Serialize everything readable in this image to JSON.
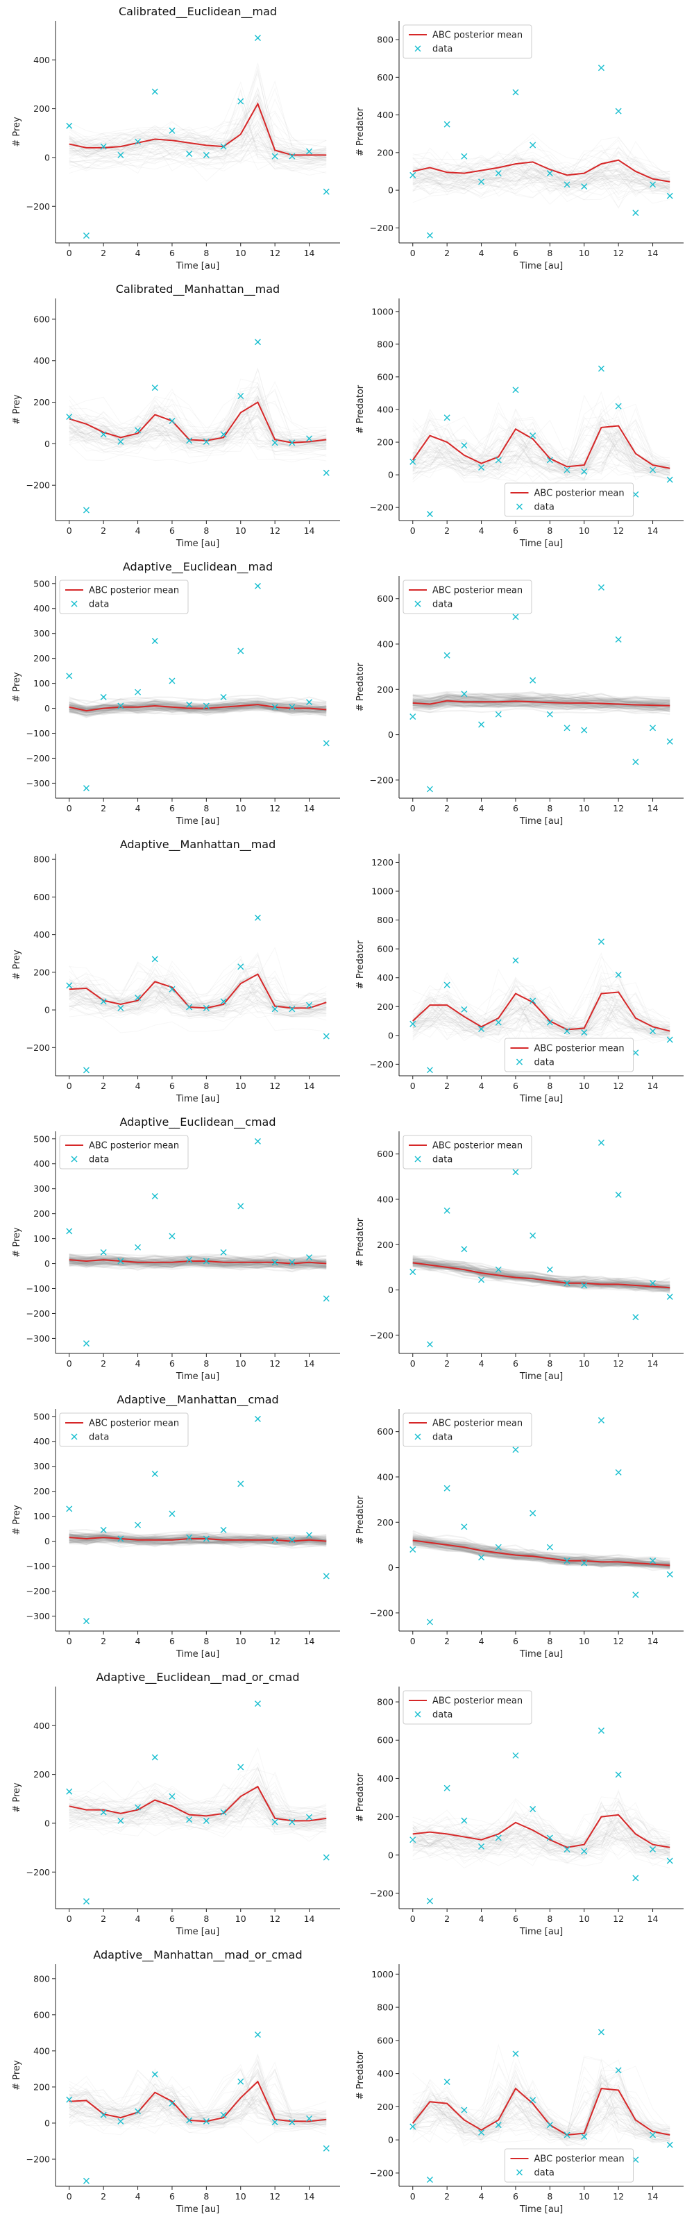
{
  "colors": {
    "mean": "#d62728",
    "data": "#17becf",
    "traj": "#aaaaaa",
    "band": "#888888"
  },
  "chart_data": [
    {
      "row": 0,
      "col": 0,
      "type": "line",
      "title": "Calibrated__Euclidean__mad",
      "xlabel": "Time [au]",
      "ylabel": "# Prey",
      "xlim": [
        -0.8,
        15.8
      ],
      "ylim": [
        -350,
        560
      ],
      "yticks": [
        -200,
        0,
        200,
        400
      ],
      "xticks": [
        0,
        2,
        4,
        6,
        8,
        10,
        12,
        14
      ],
      "spread": "wide",
      "legend": null,
      "data": [
        130,
        -320,
        45,
        10,
        65,
        270,
        110,
        15,
        10,
        45,
        230,
        490,
        5,
        5,
        25,
        -140
      ],
      "mean": [
        55,
        40,
        40,
        45,
        60,
        75,
        70,
        60,
        50,
        45,
        95,
        220,
        30,
        10,
        10,
        10
      ]
    },
    {
      "row": 0,
      "col": 1,
      "type": "line",
      "title": "",
      "xlabel": "Time [au]",
      "ylabel": "# Predator",
      "xlim": [
        -0.8,
        15.8
      ],
      "ylim": [
        -280,
        900
      ],
      "yticks": [
        -200,
        0,
        200,
        400,
        600,
        800
      ],
      "xticks": [
        0,
        2,
        4,
        6,
        8,
        10,
        12,
        14
      ],
      "spread": "wide",
      "legend": "upper left",
      "data": [
        80,
        -240,
        350,
        180,
        45,
        90,
        520,
        240,
        90,
        30,
        20,
        650,
        420,
        -120,
        30,
        -30
      ],
      "mean": [
        100,
        120,
        95,
        90,
        105,
        120,
        140,
        150,
        110,
        80,
        90,
        140,
        160,
        100,
        60,
        45
      ]
    },
    {
      "row": 1,
      "col": 0,
      "type": "line",
      "title": "Calibrated__Manhattan__mad",
      "xlabel": "Time [au]",
      "ylabel": "# Prey",
      "xlim": [
        -0.8,
        15.8
      ],
      "ylim": [
        -370,
        700
      ],
      "yticks": [
        -200,
        0,
        200,
        400,
        600
      ],
      "xticks": [
        0,
        2,
        4,
        6,
        8,
        10,
        12,
        14
      ],
      "spread": "wide",
      "legend": null,
      "data": [
        130,
        -320,
        45,
        10,
        65,
        270,
        110,
        15,
        10,
        45,
        230,
        490,
        5,
        5,
        25,
        -140
      ],
      "mean": [
        120,
        95,
        55,
        30,
        50,
        140,
        110,
        20,
        15,
        30,
        150,
        200,
        20,
        5,
        10,
        20
      ]
    },
    {
      "row": 1,
      "col": 1,
      "type": "line",
      "title": "",
      "xlabel": "Time [au]",
      "ylabel": "# Predator",
      "xlim": [
        -0.8,
        15.8
      ],
      "ylim": [
        -280,
        1080
      ],
      "yticks": [
        -200,
        0,
        200,
        400,
        600,
        800,
        1000
      ],
      "xticks": [
        0,
        2,
        4,
        6,
        8,
        10,
        12,
        14
      ],
      "spread": "wide",
      "legend": "lower center",
      "data": [
        80,
        -240,
        350,
        180,
        45,
        90,
        520,
        240,
        90,
        30,
        20,
        650,
        420,
        -120,
        30,
        -30
      ],
      "mean": [
        90,
        240,
        200,
        120,
        70,
        110,
        280,
        220,
        100,
        50,
        60,
        290,
        300,
        130,
        60,
        40
      ]
    },
    {
      "row": 2,
      "col": 0,
      "type": "line",
      "title": "Adaptive__Euclidean__mad",
      "xlabel": "Time [au]",
      "ylabel": "# Prey",
      "xlim": [
        -0.8,
        15.8
      ],
      "ylim": [
        -360,
        530
      ],
      "yticks": [
        -300,
        -200,
        -100,
        0,
        100,
        200,
        300,
        400,
        500
      ],
      "xticks": [
        0,
        2,
        4,
        6,
        8,
        10,
        12,
        14
      ],
      "spread": "narrow",
      "legend": "upper left",
      "data": [
        130,
        -320,
        45,
        10,
        65,
        270,
        110,
        15,
        10,
        45,
        230,
        490,
        5,
        5,
        25,
        -140
      ],
      "mean": [
        5,
        -10,
        0,
        5,
        5,
        10,
        5,
        0,
        0,
        5,
        10,
        15,
        5,
        0,
        0,
        -5
      ]
    },
    {
      "row": 2,
      "col": 1,
      "type": "line",
      "title": "",
      "xlabel": "Time [au]",
      "ylabel": "# Predator",
      "xlim": [
        -0.8,
        15.8
      ],
      "ylim": [
        -280,
        700
      ],
      "yticks": [
        -200,
        0,
        200,
        400,
        600
      ],
      "xticks": [
        0,
        2,
        4,
        6,
        8,
        10,
        12,
        14
      ],
      "spread": "narrow",
      "legend": "upper left",
      "data": [
        80,
        -240,
        350,
        180,
        45,
        90,
        520,
        240,
        90,
        30,
        20,
        650,
        420,
        -120,
        30,
        -30
      ],
      "mean": [
        140,
        135,
        150,
        145,
        145,
        145,
        148,
        145,
        142,
        140,
        140,
        138,
        135,
        132,
        130,
        128
      ]
    },
    {
      "row": 3,
      "col": 0,
      "type": "line",
      "title": "Adaptive__Manhattan__mad",
      "xlabel": "Time [au]",
      "ylabel": "# Prey",
      "xlim": [
        -0.8,
        15.8
      ],
      "ylim": [
        -350,
        830
      ],
      "yticks": [
        -200,
        0,
        200,
        400,
        600,
        800
      ],
      "xticks": [
        0,
        2,
        4,
        6,
        8,
        10,
        12,
        14
      ],
      "spread": "wide",
      "legend": null,
      "data": [
        130,
        -320,
        45,
        10,
        65,
        270,
        110,
        15,
        10,
        45,
        230,
        490,
        5,
        5,
        25,
        -140
      ],
      "mean": [
        110,
        115,
        50,
        30,
        50,
        150,
        120,
        15,
        10,
        30,
        140,
        190,
        20,
        10,
        10,
        40
      ]
    },
    {
      "row": 3,
      "col": 1,
      "type": "line",
      "title": "",
      "xlabel": "Time [au]",
      "ylabel": "# Predator",
      "xlim": [
        -0.8,
        15.8
      ],
      "ylim": [
        -280,
        1260
      ],
      "yticks": [
        -200,
        0,
        200,
        400,
        600,
        800,
        1000,
        1200
      ],
      "xticks": [
        0,
        2,
        4,
        6,
        8,
        10,
        12,
        14
      ],
      "spread": "wide",
      "legend": "lower center",
      "data": [
        80,
        -240,
        350,
        180,
        45,
        90,
        520,
        240,
        90,
        30,
        20,
        650,
        420,
        -120,
        30,
        -30
      ],
      "mean": [
        100,
        210,
        210,
        130,
        60,
        120,
        290,
        230,
        100,
        40,
        50,
        290,
        300,
        120,
        60,
        30
      ]
    },
    {
      "row": 4,
      "col": 0,
      "type": "line",
      "title": "Adaptive__Euclidean__cmad",
      "xlabel": "Time [au]",
      "ylabel": "# Prey",
      "xlim": [
        -0.8,
        15.8
      ],
      "ylim": [
        -360,
        530
      ],
      "yticks": [
        -300,
        -200,
        -100,
        0,
        100,
        200,
        300,
        400,
        500
      ],
      "xticks": [
        0,
        2,
        4,
        6,
        8,
        10,
        12,
        14
      ],
      "spread": "narrow",
      "legend": "upper left",
      "data": [
        130,
        -320,
        45,
        10,
        65,
        270,
        110,
        15,
        10,
        45,
        230,
        490,
        5,
        5,
        25,
        -140
      ],
      "mean": [
        15,
        10,
        15,
        10,
        5,
        5,
        5,
        10,
        10,
        5,
        5,
        5,
        5,
        0,
        5,
        0
      ]
    },
    {
      "row": 4,
      "col": 1,
      "type": "line",
      "title": "",
      "xlabel": "Time [au]",
      "ylabel": "# Predator",
      "xlim": [
        -0.8,
        15.8
      ],
      "ylim": [
        -280,
        700
      ],
      "yticks": [
        -200,
        0,
        200,
        400,
        600
      ],
      "xticks": [
        0,
        2,
        4,
        6,
        8,
        10,
        12,
        14
      ],
      "spread": "narrow",
      "legend": "upper left",
      "data": [
        80,
        -240,
        350,
        180,
        45,
        90,
        520,
        240,
        90,
        30,
        20,
        650,
        420,
        -120,
        30,
        -30
      ],
      "mean": [
        120,
        110,
        100,
        90,
        75,
        65,
        55,
        50,
        40,
        30,
        30,
        25,
        25,
        20,
        15,
        10
      ]
    },
    {
      "row": 5,
      "col": 0,
      "type": "line",
      "title": "Adaptive__Manhattan__cmad",
      "xlabel": "Time [au]",
      "ylabel": "# Prey",
      "xlim": [
        -0.8,
        15.8
      ],
      "ylim": [
        -360,
        530
      ],
      "yticks": [
        -300,
        -200,
        -100,
        0,
        100,
        200,
        300,
        400,
        500
      ],
      "xticks": [
        0,
        2,
        4,
        6,
        8,
        10,
        12,
        14
      ],
      "spread": "narrow",
      "legend": "upper left",
      "data": [
        130,
        -320,
        45,
        10,
        65,
        270,
        110,
        15,
        10,
        45,
        230,
        490,
        5,
        5,
        25,
        -140
      ],
      "mean": [
        15,
        10,
        15,
        10,
        5,
        5,
        5,
        10,
        10,
        5,
        5,
        5,
        5,
        0,
        5,
        0
      ]
    },
    {
      "row": 5,
      "col": 1,
      "type": "line",
      "title": "",
      "xlabel": "Time [au]",
      "ylabel": "# Predator",
      "xlim": [
        -0.8,
        15.8
      ],
      "ylim": [
        -280,
        700
      ],
      "yticks": [
        -200,
        0,
        200,
        400,
        600
      ],
      "xticks": [
        0,
        2,
        4,
        6,
        8,
        10,
        12,
        14
      ],
      "spread": "narrow",
      "legend": "upper left",
      "data": [
        80,
        -240,
        350,
        180,
        45,
        90,
        520,
        240,
        90,
        30,
        20,
        650,
        420,
        -120,
        30,
        -30
      ],
      "mean": [
        120,
        110,
        100,
        90,
        75,
        65,
        55,
        50,
        40,
        30,
        30,
        25,
        25,
        20,
        15,
        10
      ]
    },
    {
      "row": 6,
      "col": 0,
      "type": "line",
      "title": "Adaptive__Euclidean__mad_or_cmad",
      "xlabel": "Time [au]",
      "ylabel": "# Prey",
      "xlim": [
        -0.8,
        15.8
      ],
      "ylim": [
        -350,
        560
      ],
      "yticks": [
        -200,
        0,
        200,
        400
      ],
      "xticks": [
        0,
        2,
        4,
        6,
        8,
        10,
        12,
        14
      ],
      "spread": "wide",
      "legend": null,
      "data": [
        130,
        -320,
        45,
        10,
        65,
        270,
        110,
        15,
        10,
        45,
        230,
        490,
        5,
        5,
        25,
        -140
      ],
      "mean": [
        70,
        55,
        55,
        40,
        55,
        95,
        70,
        35,
        30,
        40,
        110,
        150,
        20,
        10,
        10,
        20
      ]
    },
    {
      "row": 6,
      "col": 1,
      "type": "line",
      "title": "",
      "xlabel": "Time [au]",
      "ylabel": "# Predator",
      "xlim": [
        -0.8,
        15.8
      ],
      "ylim": [
        -280,
        880
      ],
      "yticks": [
        -200,
        0,
        200,
        400,
        600,
        800
      ],
      "xticks": [
        0,
        2,
        4,
        6,
        8,
        10,
        12,
        14
      ],
      "spread": "wide",
      "legend": "upper left",
      "data": [
        80,
        -240,
        350,
        180,
        45,
        90,
        520,
        240,
        90,
        30,
        20,
        650,
        420,
        -120,
        30,
        -30
      ],
      "mean": [
        110,
        120,
        110,
        95,
        80,
        110,
        170,
        130,
        80,
        40,
        55,
        200,
        210,
        110,
        55,
        40
      ]
    },
    {
      "row": 7,
      "col": 0,
      "type": "line",
      "title": "Adaptive__Manhattan__mad_or_cmad",
      "xlabel": "Time [au]",
      "ylabel": "# Prey",
      "xlim": [
        -0.8,
        15.8
      ],
      "ylim": [
        -350,
        880
      ],
      "yticks": [
        -200,
        0,
        200,
        400,
        600,
        800
      ],
      "xticks": [
        0,
        2,
        4,
        6,
        8,
        10,
        12,
        14
      ],
      "spread": "wide",
      "legend": null,
      "data": [
        130,
        -320,
        45,
        10,
        65,
        270,
        110,
        15,
        10,
        45,
        230,
        490,
        5,
        5,
        25,
        -140
      ],
      "mean": [
        120,
        125,
        50,
        30,
        60,
        170,
        120,
        15,
        10,
        30,
        140,
        230,
        20,
        10,
        10,
        20
      ]
    },
    {
      "row": 7,
      "col": 1,
      "type": "line",
      "title": "",
      "xlabel": "Time [au]",
      "ylabel": "# Predator",
      "xlim": [
        -0.8,
        15.8
      ],
      "ylim": [
        -280,
        1060
      ],
      "yticks": [
        -200,
        0,
        200,
        400,
        600,
        800,
        1000
      ],
      "xticks": [
        0,
        2,
        4,
        6,
        8,
        10,
        12,
        14
      ],
      "spread": "wide",
      "legend": "lower center",
      "data": [
        80,
        -240,
        350,
        180,
        45,
        90,
        520,
        240,
        90,
        30,
        20,
        650,
        420,
        -120,
        30,
        -30
      ],
      "mean": [
        100,
        230,
        220,
        120,
        60,
        120,
        310,
        220,
        90,
        30,
        40,
        310,
        300,
        120,
        50,
        30
      ]
    }
  ],
  "legend_labels": {
    "mean": "ABC posterior mean",
    "data": "data"
  }
}
